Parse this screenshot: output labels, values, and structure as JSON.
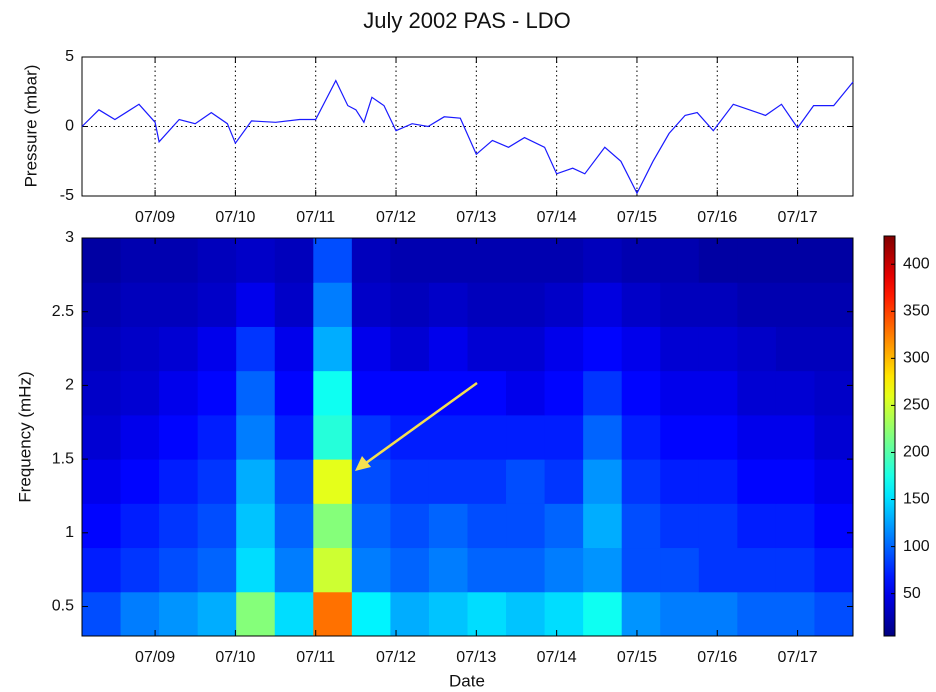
{
  "chart_data": [
    {
      "type": "line",
      "title": "July  2002   PAS - LDO",
      "ylabel": "Pressure (mbar)",
      "color": "#1a1aff",
      "grid": true,
      "x": [
        8.09,
        8.3,
        8.5,
        8.8,
        9.0,
        9.05,
        9.3,
        9.5,
        9.7,
        9.9,
        10.0,
        10.2,
        10.5,
        10.8,
        11.0,
        11.25,
        11.4,
        11.5,
        11.6,
        11.7,
        11.85,
        12.0,
        12.2,
        12.4,
        12.6,
        12.8,
        13.0,
        13.2,
        13.4,
        13.6,
        13.85,
        14.0,
        14.2,
        14.35,
        14.6,
        14.8,
        15.0,
        15.2,
        15.4,
        15.6,
        15.75,
        15.95,
        16.2,
        16.4,
        16.6,
        16.8,
        17.0,
        17.2,
        17.45,
        17.69
      ],
      "values": [
        0,
        1.2,
        0.5,
        1.6,
        0.3,
        -1.1,
        0.5,
        0.2,
        1.0,
        0.2,
        -1.2,
        0.4,
        0.3,
        0.5,
        0.5,
        3.3,
        1.5,
        1.2,
        0.3,
        2.1,
        1.5,
        -0.3,
        0.2,
        0,
        0.7,
        0.6,
        -2.0,
        -1.0,
        -1.5,
        -0.8,
        -1.5,
        -3.4,
        -3.0,
        -3.4,
        -1.5,
        -2.5,
        -4.8,
        -2.5,
        -0.5,
        0.8,
        1.0,
        -0.3,
        1.6,
        1.2,
        0.8,
        1.6,
        -0.1,
        1.5,
        1.5,
        3.2
      ],
      "xlim": [
        8.09,
        17.69
      ],
      "xticks": [
        {
          "value": 9,
          "label": "07/09"
        },
        {
          "value": 10,
          "label": "07/10"
        },
        {
          "value": 11,
          "label": "07/11"
        },
        {
          "value": 12,
          "label": "07/12"
        },
        {
          "value": 13,
          "label": "07/13"
        },
        {
          "value": 14,
          "label": "07/14"
        },
        {
          "value": 15,
          "label": "07/15"
        },
        {
          "value": 16,
          "label": "07/16"
        },
        {
          "value": 17,
          "label": "07/17"
        }
      ],
      "ylim": [
        -5,
        5
      ],
      "yticks": [
        -5,
        0,
        5
      ]
    },
    {
      "type": "heatmap",
      "xlabel": "Date",
      "ylabel": "Frequency (mHz)",
      "colormap": "jet",
      "grid": false,
      "x": [
        8.09,
        8.57,
        9.05,
        9.53,
        10.01,
        10.49,
        10.97,
        11.45,
        11.93,
        12.41,
        12.89,
        13.37,
        13.85,
        14.33,
        14.81,
        15.29,
        15.77,
        16.25,
        16.73,
        17.21,
        17.69
      ],
      "y": [
        0.3,
        0.6,
        0.9,
        1.2,
        1.5,
        1.8,
        2.1,
        2.4,
        2.7,
        3.0
      ],
      "z": [
        [
          90,
          110,
          120,
          130,
          220,
          150,
          330,
          160,
          130,
          140,
          150,
          140,
          150,
          170,
          120,
          110,
          110,
          100,
          100,
          90
        ],
        [
          70,
          80,
          90,
          100,
          150,
          110,
          250,
          110,
          100,
          110,
          100,
          100,
          110,
          120,
          90,
          90,
          80,
          80,
          80,
          70
        ],
        [
          60,
          70,
          80,
          90,
          140,
          100,
          220,
          100,
          90,
          100,
          90,
          90,
          100,
          130,
          90,
          80,
          80,
          70,
          70,
          60
        ],
        [
          50,
          60,
          70,
          80,
          130,
          90,
          260,
          90,
          80,
          80,
          80,
          90,
          80,
          120,
          80,
          70,
          70,
          60,
          60,
          50
        ],
        [
          40,
          50,
          60,
          70,
          110,
          70,
          180,
          80,
          70,
          70,
          70,
          70,
          70,
          100,
          70,
          60,
          60,
          50,
          50,
          40
        ],
        [
          35,
          40,
          50,
          60,
          100,
          60,
          170,
          60,
          60,
          60,
          60,
          50,
          60,
          80,
          60,
          50,
          50,
          40,
          40,
          35
        ],
        [
          30,
          35,
          40,
          50,
          80,
          50,
          130,
          50,
          40,
          50,
          40,
          40,
          50,
          60,
          50,
          40,
          40,
          35,
          30,
          30
        ],
        [
          25,
          30,
          30,
          35,
          50,
          35,
          110,
          35,
          30,
          35,
          30,
          30,
          35,
          45,
          35,
          30,
          30,
          25,
          25,
          25
        ],
        [
          20,
          25,
          25,
          30,
          35,
          30,
          90,
          30,
          25,
          25,
          25,
          25,
          25,
          30,
          25,
          25,
          20,
          20,
          20,
          20
        ]
      ],
      "xlim": [
        8.09,
        17.69
      ],
      "xticks": [
        {
          "value": 9,
          "label": "07/09"
        },
        {
          "value": 10,
          "label": "07/10"
        },
        {
          "value": 11,
          "label": "07/11"
        },
        {
          "value": 12,
          "label": "07/12"
        },
        {
          "value": 13,
          "label": "07/13"
        },
        {
          "value": 14,
          "label": "07/14"
        },
        {
          "value": 15,
          "label": "07/15"
        },
        {
          "value": 16,
          "label": "07/16"
        },
        {
          "value": 17,
          "label": "07/17"
        }
      ],
      "ylim": [
        0.3,
        3
      ],
      "yticks": [
        0.5,
        1,
        1.5,
        2,
        2.5,
        3
      ],
      "clim": [
        5,
        430
      ],
      "cticks": [
        50,
        100,
        150,
        200,
        250,
        300,
        350,
        400
      ]
    }
  ]
}
